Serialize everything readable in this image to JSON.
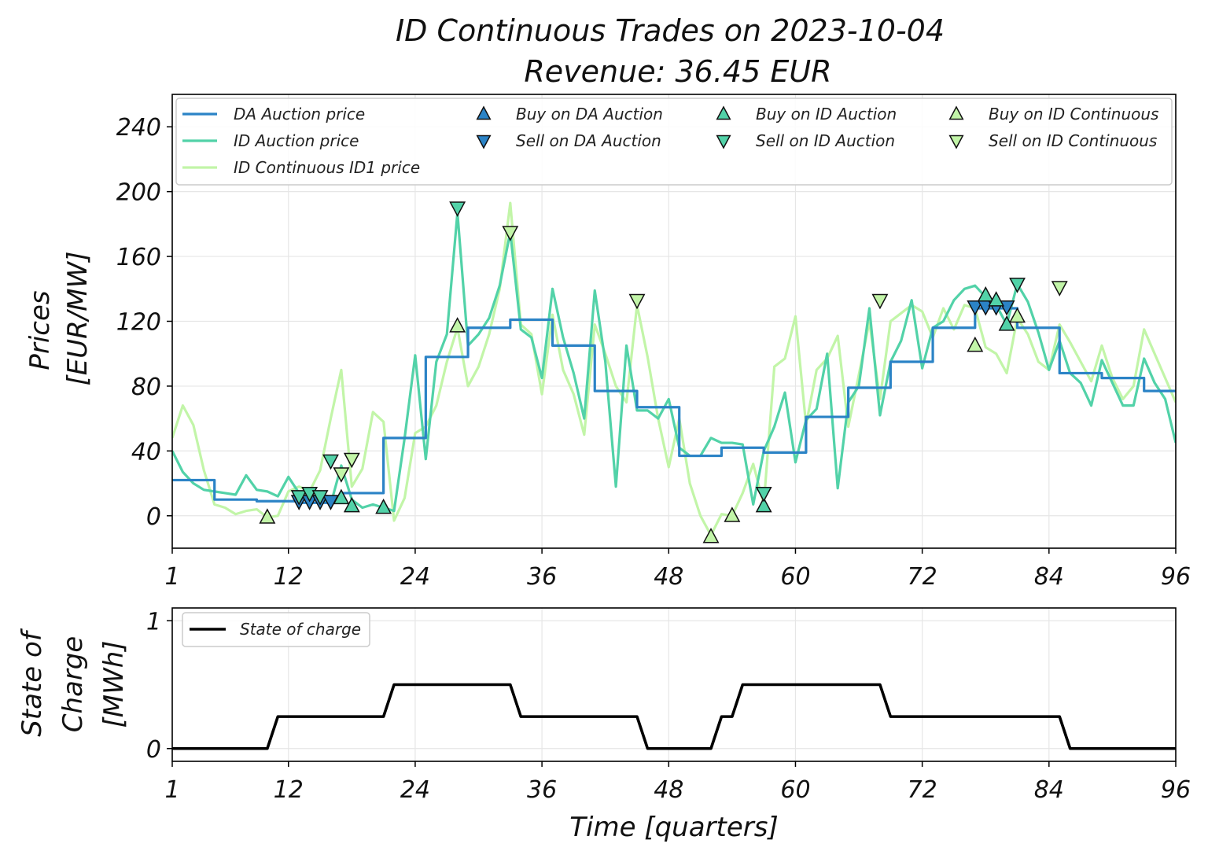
{
  "title": {
    "line1": "ID Continuous Trades on 2023-10-04",
    "line2": "Revenue: 36.45 EUR"
  },
  "chart_data": [
    {
      "type": "line",
      "name": "prices",
      "ylabel_line1": "Prices",
      "ylabel_line2": "[EUR/MW]",
      "xlim": [
        1,
        96
      ],
      "ylim": [
        -20,
        260
      ],
      "xticks": [
        1,
        12,
        24,
        36,
        48,
        60,
        72,
        84,
        96
      ],
      "yticks": [
        0,
        40,
        80,
        120,
        160,
        200,
        240
      ],
      "grid": true,
      "legend_position": "top (full width)",
      "x": [
        1,
        2,
        3,
        4,
        5,
        6,
        7,
        8,
        9,
        10,
        11,
        12,
        13,
        14,
        15,
        16,
        17,
        18,
        19,
        20,
        21,
        22,
        23,
        24,
        25,
        26,
        27,
        28,
        29,
        30,
        31,
        32,
        33,
        34,
        35,
        36,
        37,
        38,
        39,
        40,
        41,
        42,
        43,
        44,
        45,
        46,
        47,
        48,
        49,
        50,
        51,
        52,
        53,
        54,
        55,
        56,
        57,
        58,
        59,
        60,
        61,
        62,
        63,
        64,
        65,
        66,
        67,
        68,
        69,
        70,
        71,
        72,
        73,
        74,
        75,
        76,
        77,
        78,
        79,
        80,
        81,
        82,
        83,
        84,
        85,
        86,
        87,
        88,
        89,
        90,
        91,
        92,
        93,
        94,
        95,
        96
      ],
      "series": [
        {
          "name": "DA Auction price",
          "color": "#2b83c6",
          "values": [
            22,
            22,
            22,
            22,
            10,
            10,
            10,
            10,
            9,
            9,
            9,
            9,
            8,
            8,
            8,
            8,
            14,
            14,
            14,
            14,
            48,
            48,
            48,
            48,
            98,
            98,
            98,
            98,
            116,
            116,
            116,
            116,
            121,
            121,
            121,
            121,
            105,
            105,
            105,
            105,
            77,
            77,
            77,
            77,
            67,
            67,
            67,
            67,
            37,
            37,
            37,
            37,
            42,
            42,
            42,
            42,
            39,
            39,
            39,
            39,
            61,
            61,
            61,
            61,
            79,
            79,
            79,
            79,
            95,
            95,
            95,
            95,
            116,
            116,
            116,
            116,
            128,
            128,
            128,
            128,
            116,
            116,
            116,
            116,
            88,
            88,
            88,
            88,
            85,
            85,
            85,
            85,
            77,
            77,
            77,
            77
          ]
        },
        {
          "name": "ID Auction price",
          "color": "#52d2a8",
          "values": [
            40,
            27,
            20,
            16,
            15,
            14,
            13,
            25,
            16,
            15,
            12,
            24,
            14,
            9,
            12,
            7,
            31,
            10,
            5,
            7,
            5,
            3,
            48,
            99,
            35,
            95,
            112,
            187,
            105,
            112,
            122,
            142,
            175,
            115,
            110,
            85,
            140,
            110,
            88,
            60,
            139,
            95,
            18,
            105,
            65,
            65,
            60,
            72,
            42,
            37,
            37,
            48,
            45,
            45,
            44,
            7,
            40,
            55,
            76,
            33,
            59,
            66,
            100,
            17,
            70,
            80,
            128,
            62,
            95,
            108,
            133,
            91,
            116,
            120,
            133,
            140,
            142,
            135,
            130,
            118,
            143,
            132,
            113,
            90,
            108,
            88,
            82,
            68,
            96,
            82,
            68,
            68,
            97,
            82,
            72,
            45
          ]
        },
        {
          "name": "ID Continuous ID1 price",
          "color": "#c2f5a8",
          "values": [
            48,
            68,
            56,
            28,
            7,
            5,
            1,
            3,
            4,
            -1,
            0,
            15,
            18,
            15,
            28,
            60,
            90,
            18,
            29,
            64,
            58,
            -3,
            11,
            51,
            55,
            68,
            95,
            116,
            80,
            92,
            112,
            140,
            193,
            118,
            112,
            75,
            124,
            90,
            75,
            50,
            118,
            100,
            80,
            70,
            130,
            98,
            60,
            30,
            60,
            20,
            0,
            -12,
            1,
            0,
            14,
            32,
            7,
            92,
            97,
            123,
            56,
            90,
            97,
            111,
            55,
            87,
            120,
            72,
            120,
            125,
            130,
            126,
            110,
            128,
            115,
            130,
            128,
            104,
            100,
            88,
            122,
            112,
            95,
            90,
            118,
            107,
            95,
            83,
            105,
            85,
            72,
            80,
            115,
            100,
            85,
            70
          ]
        }
      ],
      "markers": [
        {
          "name": "Buy on DA Auction",
          "shape": "triangle-up",
          "color": "#2b83c6",
          "points": []
        },
        {
          "name": "Sell on DA Auction",
          "shape": "triangle-down",
          "color": "#2b83c6",
          "points": [
            [
              13,
              9
            ],
            [
              14,
              9
            ],
            [
              15,
              9
            ],
            [
              16,
              9
            ],
            [
              77,
              129
            ],
            [
              78,
              129
            ],
            [
              79,
              129
            ],
            [
              80,
              129
            ]
          ]
        },
        {
          "name": "Buy on ID Auction",
          "shape": "triangle-up",
          "color": "#52d2a8",
          "points": [
            [
              17,
              11
            ],
            [
              18,
              6
            ],
            [
              21,
              5
            ],
            [
              57,
              6
            ],
            [
              78,
              136
            ],
            [
              79,
              133
            ],
            [
              80,
              118
            ]
          ]
        },
        {
          "name": "Sell on ID Auction",
          "shape": "triangle-down",
          "color": "#52d2a8",
          "points": [
            [
              13,
              12
            ],
            [
              14,
              14
            ],
            [
              15,
              12
            ],
            [
              16,
              34
            ],
            [
              28,
              190
            ],
            [
              57,
              14
            ],
            [
              81,
              143
            ]
          ]
        },
        {
          "name": "Buy on ID Continuous",
          "shape": "triangle-up",
          "color": "#c2f5a8",
          "points": [
            [
              10,
              -1
            ],
            [
              28,
              117
            ],
            [
              52,
              -13
            ],
            [
              54,
              0
            ],
            [
              77,
              105
            ],
            [
              81,
              123
            ]
          ]
        },
        {
          "name": "Sell on ID Continuous",
          "shape": "triangle-down",
          "color": "#c2f5a8",
          "points": [
            [
              17,
              26
            ],
            [
              18,
              35
            ],
            [
              33,
              175
            ],
            [
              45,
              133
            ],
            [
              68,
              133
            ],
            [
              85,
              141
            ]
          ]
        }
      ]
    },
    {
      "type": "line",
      "name": "state_of_charge",
      "ylabel_line1": "State of",
      "ylabel_line2": "Charge",
      "ylabel_line3": "[MWh]",
      "xlabel": "Time [quarters]",
      "xlim": [
        1,
        96
      ],
      "ylim": [
        -0.1,
        1.1
      ],
      "xticks": [
        1,
        12,
        24,
        36,
        48,
        60,
        72,
        84,
        96
      ],
      "yticks": [
        0,
        1
      ],
      "grid": true,
      "legend_position": "top-left",
      "series": [
        {
          "name": "State of charge",
          "color": "#000000",
          "x": [
            1,
            10,
            11,
            21,
            22,
            33,
            34,
            45,
            46,
            52,
            53,
            54,
            55,
            68,
            69,
            85,
            86,
            96
          ],
          "values": [
            0,
            0,
            0.25,
            0.25,
            0.5,
            0.5,
            0.25,
            0.25,
            0,
            0,
            0.25,
            0.25,
            0.5,
            0.5,
            0.25,
            0.25,
            0,
            0
          ]
        }
      ]
    }
  ]
}
